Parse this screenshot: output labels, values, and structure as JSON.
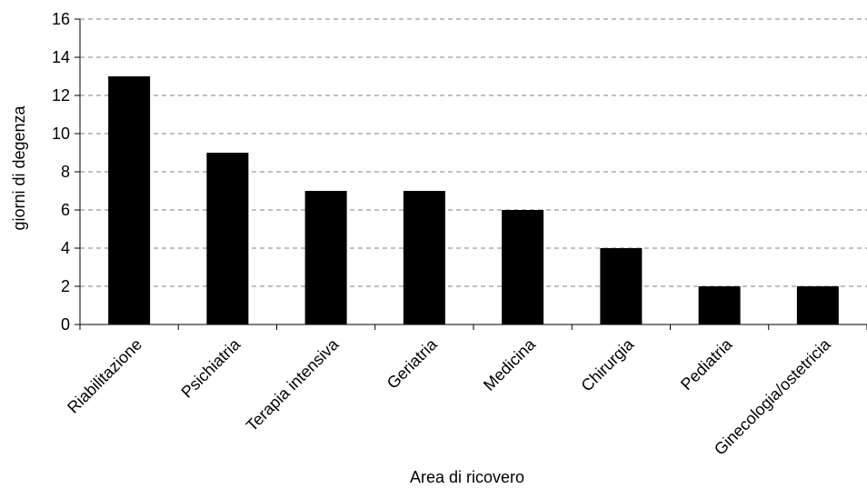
{
  "chart_data": {
    "type": "bar",
    "title": "",
    "xlabel": "Area di ricovero",
    "ylabel": "giorni di degenza",
    "categories": [
      "Riabilitazione",
      "Psichiatria",
      "Terapia intensiva",
      "Geriatria",
      "Medicina",
      "Chirurgia",
      "Pediatria",
      "Ginecologia/ostetricia"
    ],
    "values": [
      13,
      9,
      7,
      7,
      6,
      4,
      2,
      2
    ],
    "yticks": [
      "0",
      "2",
      "4",
      "6",
      "8",
      "10",
      "12",
      "14",
      "16"
    ],
    "ylim": [
      0,
      16
    ],
    "grid": true,
    "legend": "none",
    "colors": {
      "bar": "#000000",
      "grid": "#808080",
      "axis": "#000000",
      "background": "#ffffff"
    }
  }
}
